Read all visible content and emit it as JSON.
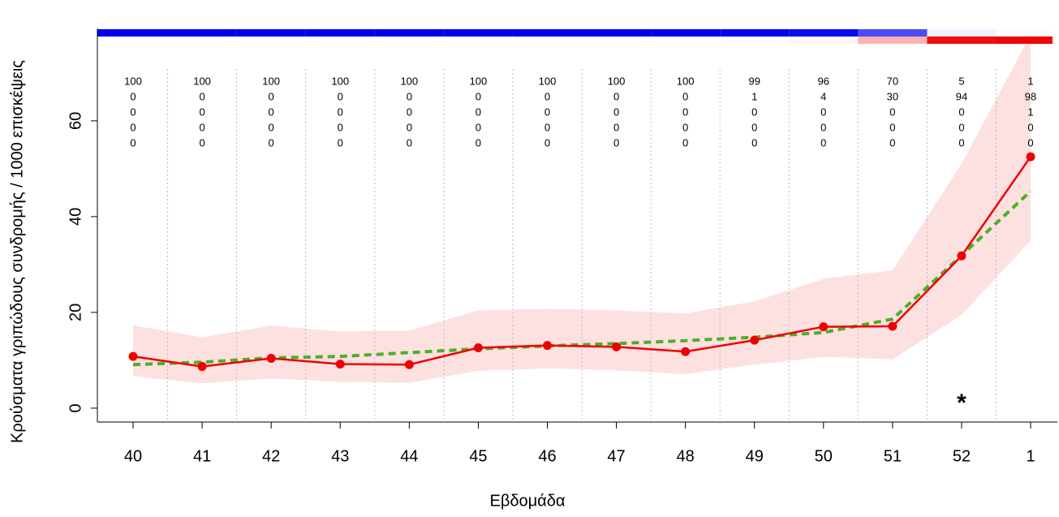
{
  "chart_data": {
    "type": "line",
    "x_label": "Εβδομάδα",
    "y_label": "Κρούσματα γριπώδους συνδρομής / 1000 επισκέψεις",
    "categories": [
      "40",
      "41",
      "42",
      "43",
      "44",
      "45",
      "46",
      "47",
      "48",
      "49",
      "50",
      "51",
      "52",
      "1"
    ],
    "series": [
      {
        "color": "#ee0000",
        "dashed": false,
        "markers": true,
        "values": [
          10.8,
          8.7,
          10.4,
          9.2,
          9.1,
          12.6,
          13.1,
          12.8,
          11.8,
          14.2,
          17.0,
          17.1,
          31.8,
          52.5
        ]
      },
      {
        "color": "#4caf2a",
        "dashed": true,
        "markers": false,
        "values": [
          9.1,
          9.6,
          10.5,
          10.8,
          11.6,
          12.4,
          13.0,
          13.5,
          14.1,
          14.8,
          15.8,
          18.6,
          31.9,
          45.3
        ]
      }
    ],
    "band": {
      "color": "#fde0e0",
      "lower": [
        6.7,
        5.2,
        6.2,
        5.5,
        5.3,
        7.8,
        8.3,
        7.9,
        7.1,
        9.1,
        10.7,
        10.2,
        19.5,
        35.0
      ],
      "upper": [
        17.3,
        14.8,
        17.2,
        16.0,
        16.2,
        20.4,
        20.7,
        20.4,
        19.8,
        22.3,
        27.0,
        28.8,
        51.0,
        78.0
      ]
    },
    "state_table": [
      [
        100,
        100,
        100,
        100,
        100,
        100,
        100,
        100,
        100,
        99,
        96,
        70,
        5,
        1
      ],
      [
        0,
        0,
        0,
        0,
        0,
        0,
        0,
        0,
        0,
        1,
        4,
        30,
        94,
        98
      ],
      [
        0,
        0,
        0,
        0,
        0,
        0,
        0,
        0,
        0,
        0,
        0,
        0,
        0,
        1
      ],
      [
        0,
        0,
        0,
        0,
        0,
        0,
        0,
        0,
        0,
        0,
        0,
        0,
        0,
        0
      ],
      [
        0,
        0,
        0,
        0,
        0,
        0,
        0,
        0,
        0,
        0,
        0,
        0,
        0,
        0
      ]
    ],
    "state_colors": [
      "#0000ee",
      "#ee0000"
    ],
    "annotation": "*",
    "ylim": [
      -2.9,
      79.3
    ],
    "yticks": [
      0,
      20,
      40,
      60
    ]
  }
}
